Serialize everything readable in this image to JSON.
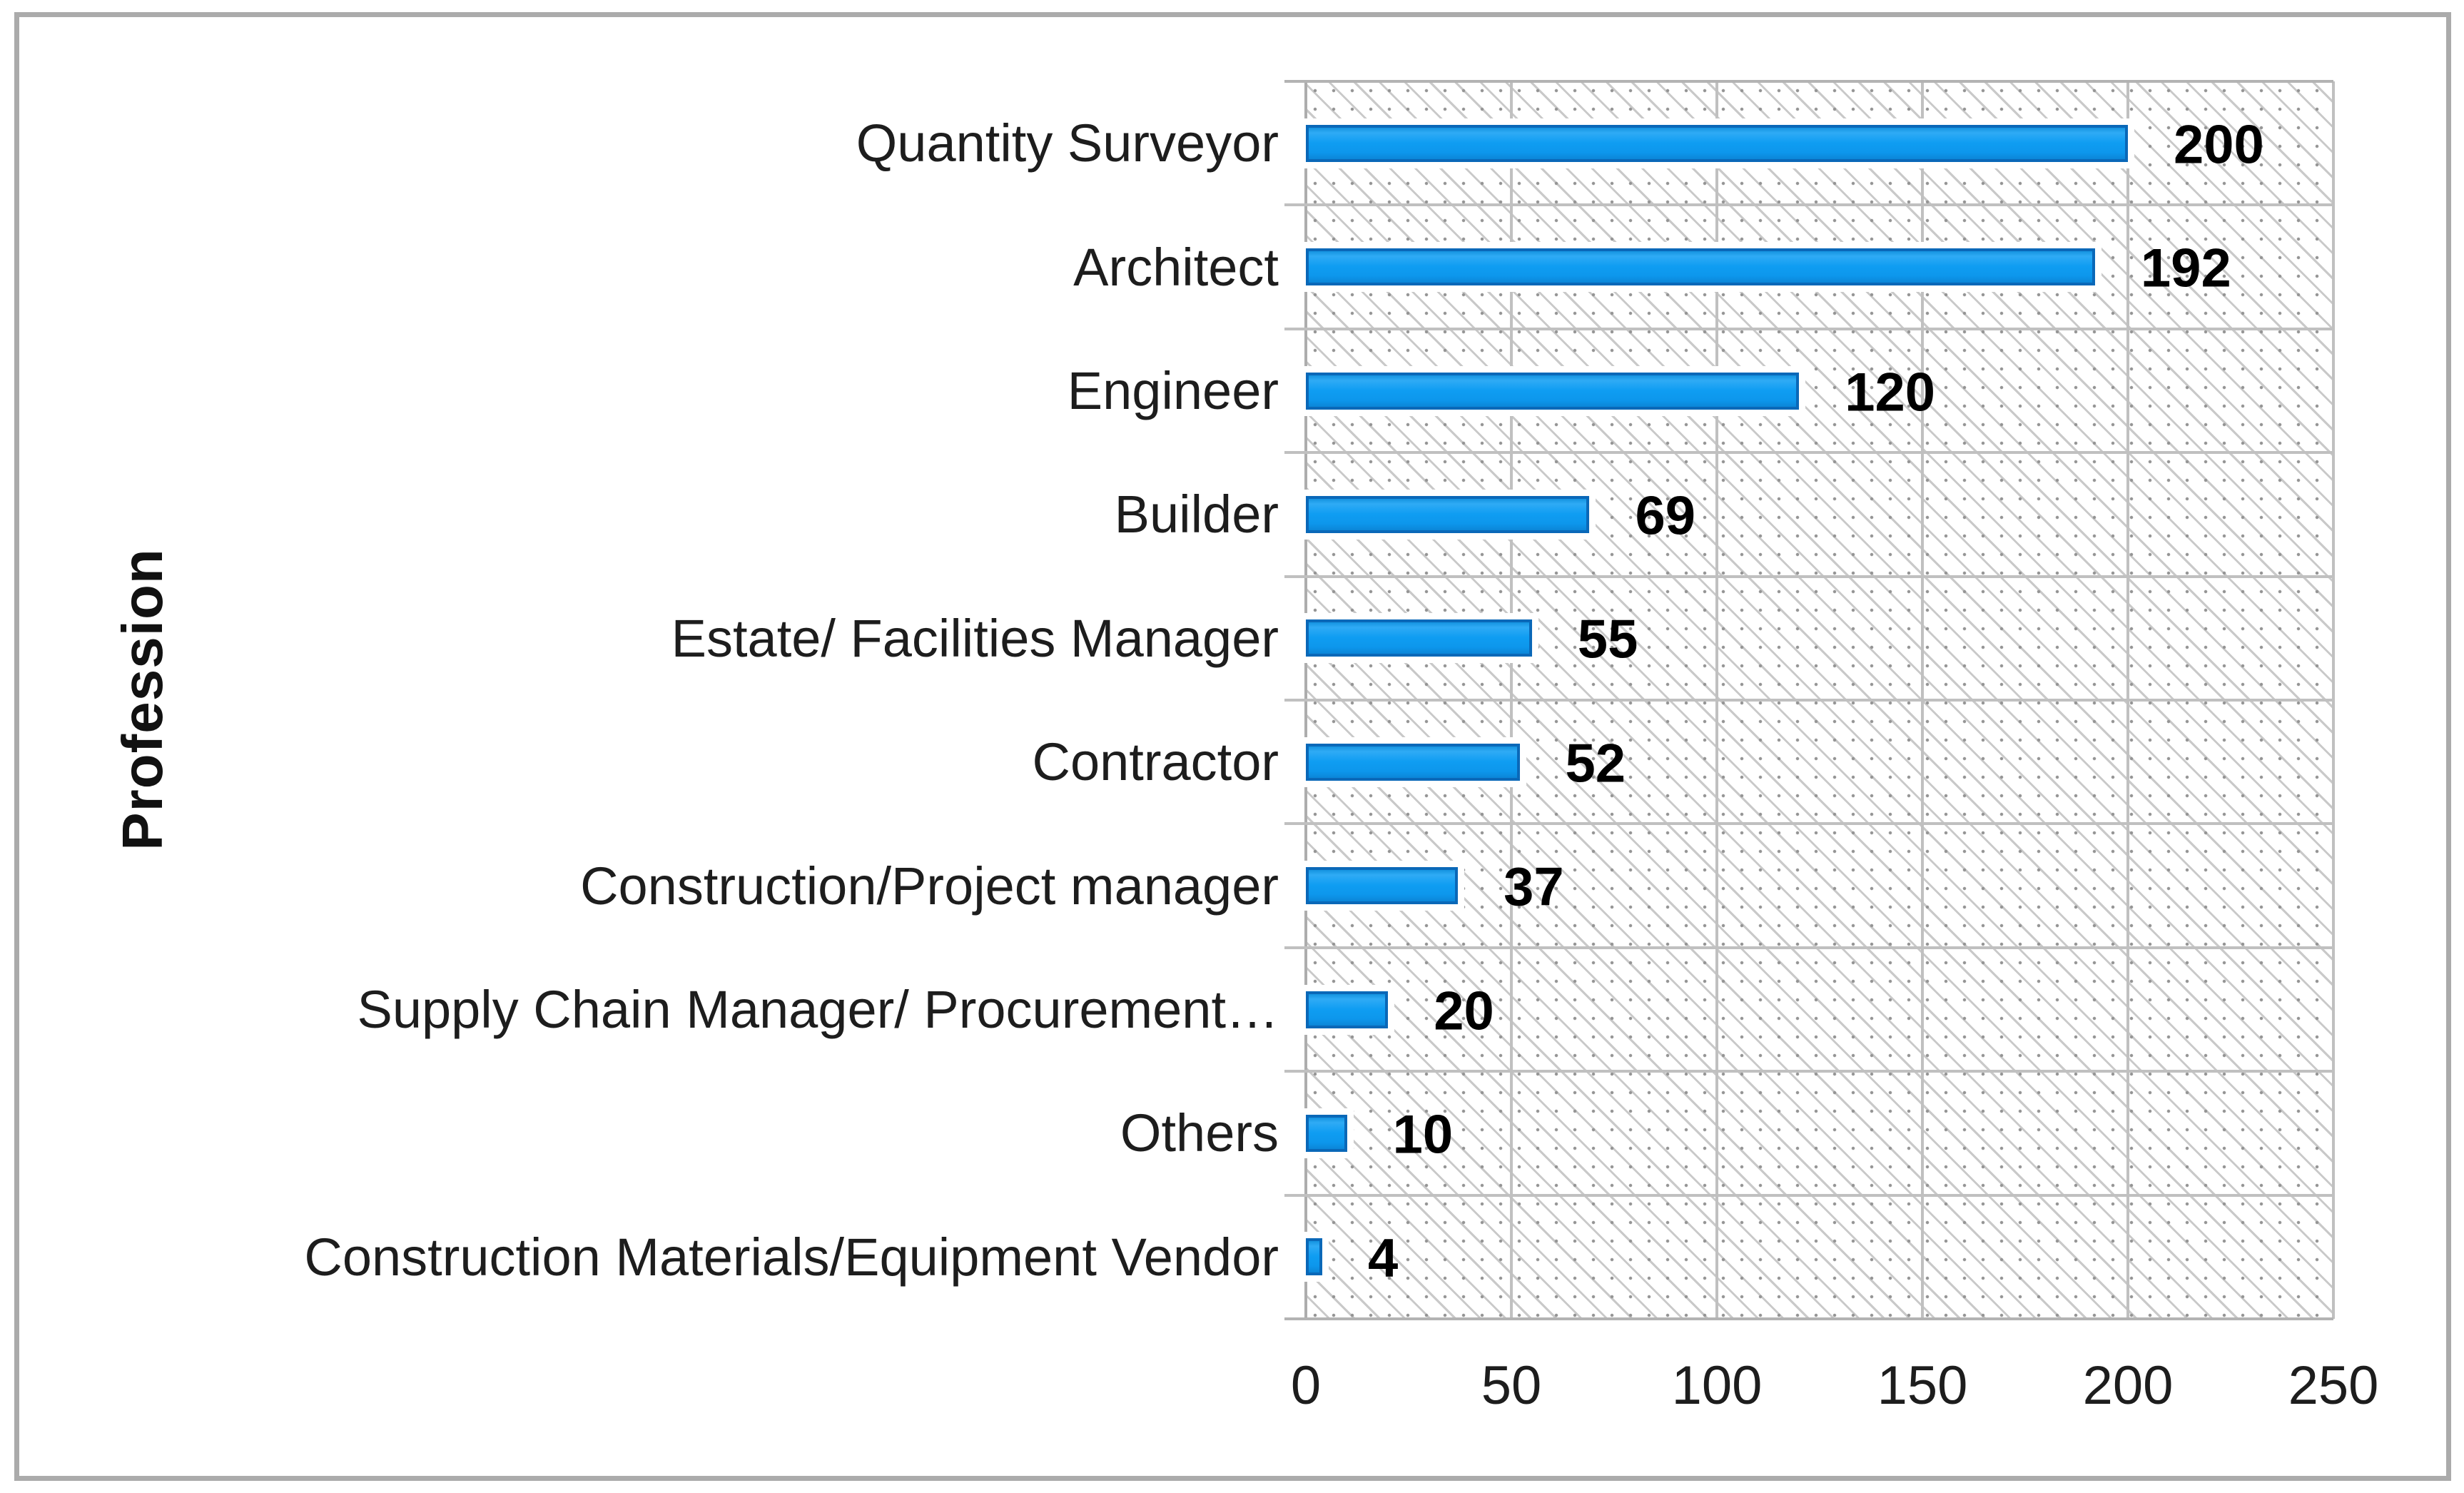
{
  "figure": {
    "background": "#ffffff",
    "border_color": "#ababab"
  },
  "chart_data": {
    "type": "bar",
    "orientation": "horizontal",
    "title": "",
    "xlabel": "",
    "ylabel": "Profession",
    "categories": [
      "Quantity Surveyor",
      "Architect",
      "Engineer",
      "Builder",
      "Estate/ Facilities Manager",
      "Contractor",
      "Construction/Project manager",
      "Supply Chain Manager/ Procurement…",
      "Others",
      "Construction Materials/Equipment Vendor"
    ],
    "values": [
      200,
      192,
      120,
      69,
      55,
      52,
      37,
      20,
      10,
      4
    ],
    "data_labels": [
      "200",
      "192",
      "120",
      "69",
      "55",
      "52",
      "37",
      "20",
      "10",
      "4"
    ],
    "xlim": [
      0,
      250
    ],
    "xticks": [
      0,
      50,
      100,
      150,
      200,
      250
    ],
    "grid": true,
    "legend": "none",
    "bar_color": "#0f9df2",
    "bar_border_color": "#0a68b8",
    "gridline_color": "#c0c0c0",
    "plot_pattern": "light-downward-diagonal-hatch"
  }
}
